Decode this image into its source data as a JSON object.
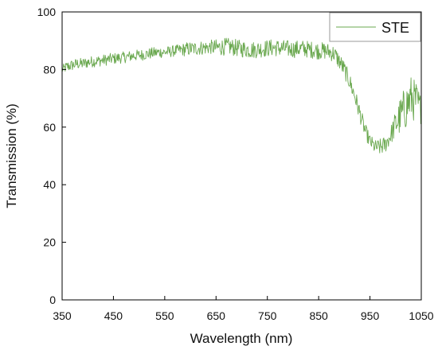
{
  "chart_data": {
    "type": "line",
    "title": "",
    "xlabel": "Wavelength (nm)",
    "ylabel": "Transmission (%)",
    "xlim": [
      350,
      1050
    ],
    "ylim": [
      0,
      100
    ],
    "x_ticks": [
      350,
      450,
      550,
      650,
      750,
      850,
      950,
      1050
    ],
    "y_ticks": [
      0,
      20,
      40,
      60,
      80,
      100
    ],
    "grid": false,
    "legend_position": "top-right",
    "series": [
      {
        "name": "STE",
        "color": "#6aa84f",
        "x": [
          350,
          360,
          370,
          380,
          390,
          400,
          410,
          420,
          430,
          440,
          450,
          460,
          470,
          480,
          490,
          500,
          510,
          520,
          530,
          540,
          550,
          560,
          570,
          580,
          590,
          600,
          610,
          620,
          630,
          640,
          650,
          660,
          670,
          680,
          690,
          700,
          710,
          720,
          730,
          740,
          750,
          760,
          770,
          780,
          790,
          800,
          810,
          820,
          830,
          840,
          850,
          860,
          870,
          880,
          890,
          900,
          910,
          920,
          930,
          940,
          950,
          960,
          970,
          980,
          990,
          1000,
          1010,
          1020,
          1030,
          1040,
          1050
        ],
        "y": [
          80,
          81,
          81.5,
          82,
          82,
          82.5,
          82.8,
          83,
          83.2,
          83.5,
          83.8,
          84,
          84.2,
          84.5,
          84.8,
          85,
          85.2,
          85.5,
          85.8,
          86,
          86,
          86.2,
          86.5,
          86.8,
          87,
          87.2,
          87.3,
          87.5,
          87.6,
          87.8,
          87.5,
          87.8,
          88,
          87.8,
          87.5,
          87.2,
          87,
          86.8,
          87,
          87.2,
          87.4,
          87.6,
          87.5,
          87.3,
          87.2,
          87,
          87.2,
          87.3,
          87,
          86.8,
          86.5,
          86.5,
          86.2,
          85.5,
          83,
          80,
          76,
          71,
          65,
          59,
          55,
          53,
          53,
          54,
          57,
          61,
          64,
          67,
          70,
          69,
          66
        ],
        "noise": [
          1.5,
          2,
          2,
          2,
          2,
          2,
          2,
          2,
          2,
          2,
          2,
          2,
          2,
          2,
          2,
          2,
          2,
          2,
          2,
          2,
          2,
          2,
          2,
          2,
          2.5,
          2.5,
          2.5,
          2.5,
          2.5,
          2.5,
          3,
          3,
          3,
          3,
          3,
          3,
          3,
          3,
          3,
          3,
          3,
          3,
          3,
          3,
          3,
          3,
          3,
          3,
          3,
          3,
          3,
          3,
          3,
          3,
          3,
          3,
          3,
          3,
          3,
          2.5,
          2.5,
          2.5,
          3,
          3,
          3,
          5,
          7,
          8,
          8,
          7,
          5
        ]
      }
    ]
  }
}
